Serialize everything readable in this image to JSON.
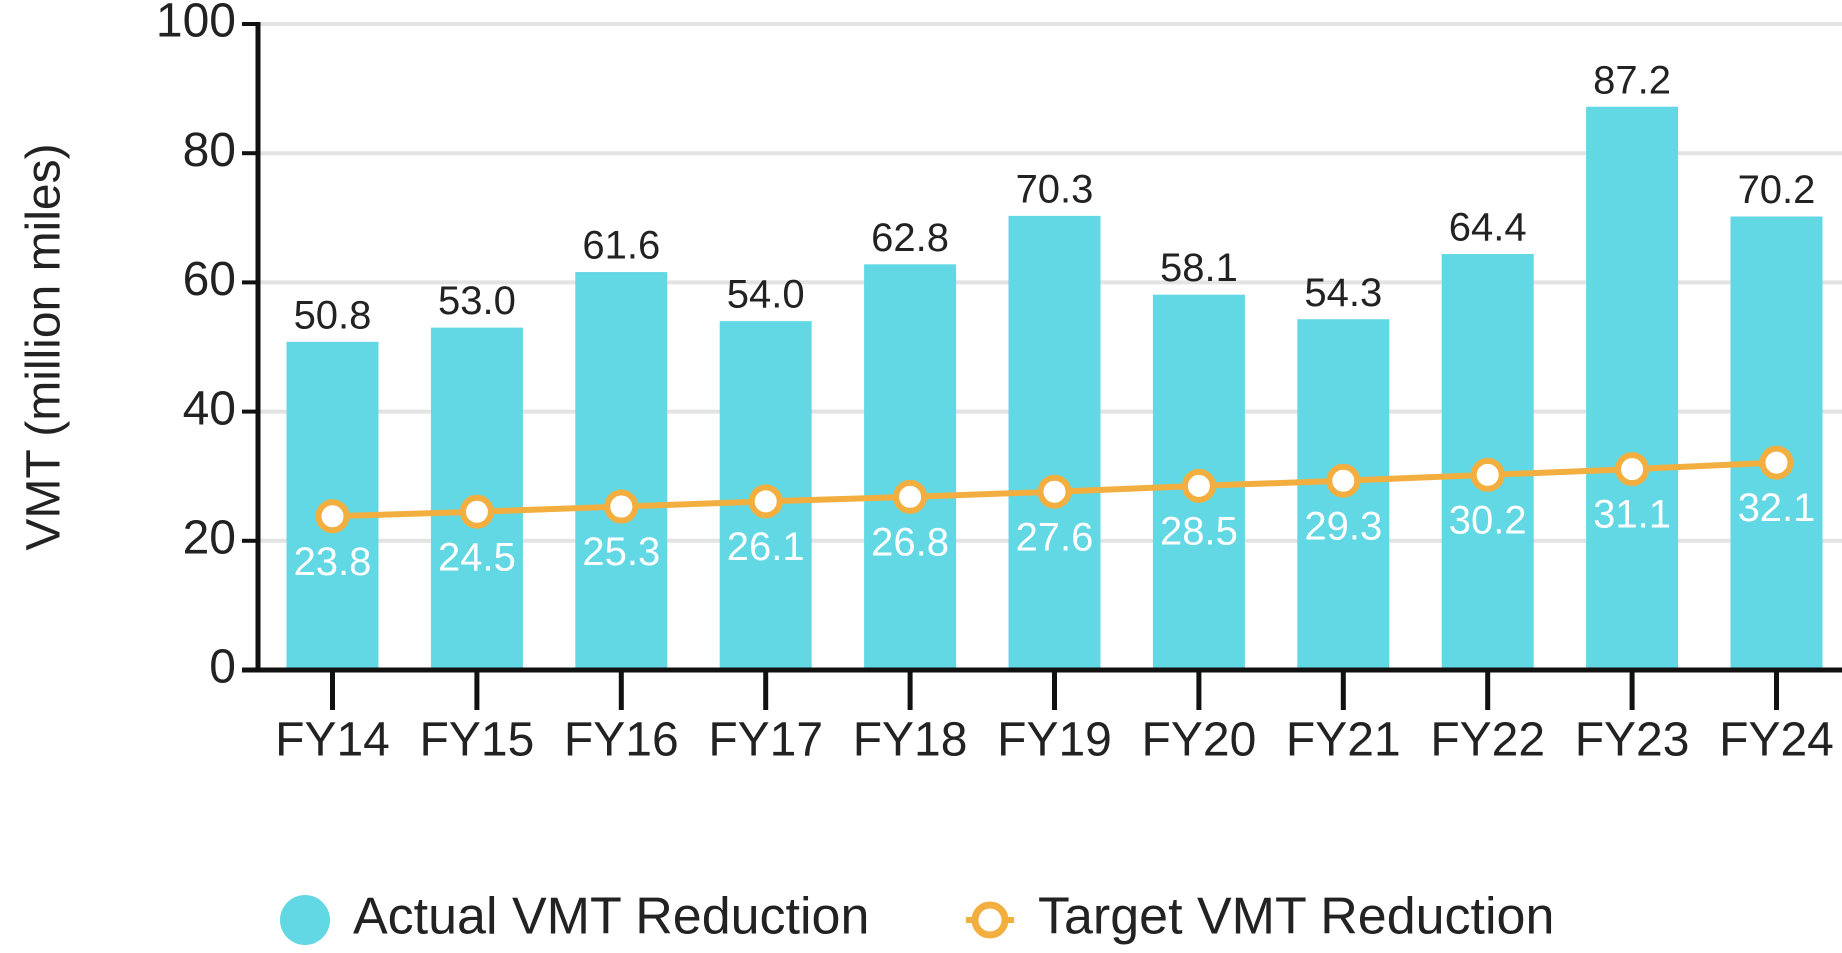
{
  "chart_data": {
    "type": "bar",
    "ylabel": "VMT (million miles)",
    "categories": [
      "FY14",
      "FY15",
      "FY16",
      "FY17",
      "FY18",
      "FY19",
      "FY20",
      "FY21",
      "FY22",
      "FY23",
      "FY24"
    ],
    "series": [
      {
        "name": "Actual VMT Reduction",
        "type": "bar",
        "color": "#62d8e4",
        "values": [
          50.8,
          53.0,
          61.6,
          54.0,
          62.8,
          70.3,
          58.1,
          54.3,
          64.4,
          87.2,
          70.2
        ],
        "value_labels": [
          "50.8",
          "53.0",
          "61.6",
          "54.0",
          "62.8",
          "70.3",
          "58.1",
          "54.3",
          "64.4",
          "87.2",
          "70.2"
        ]
      },
      {
        "name": "Target VMT Reduction",
        "type": "line",
        "color": "#f2ae3f",
        "values": [
          23.8,
          24.5,
          25.3,
          26.1,
          26.8,
          27.6,
          28.5,
          29.3,
          30.2,
          31.1,
          32.1
        ]
      }
    ],
    "ylim": [
      0,
      100
    ],
    "yticks": [
      0,
      20,
      40,
      60,
      80,
      100
    ],
    "grid": true,
    "legend": "bottom"
  }
}
